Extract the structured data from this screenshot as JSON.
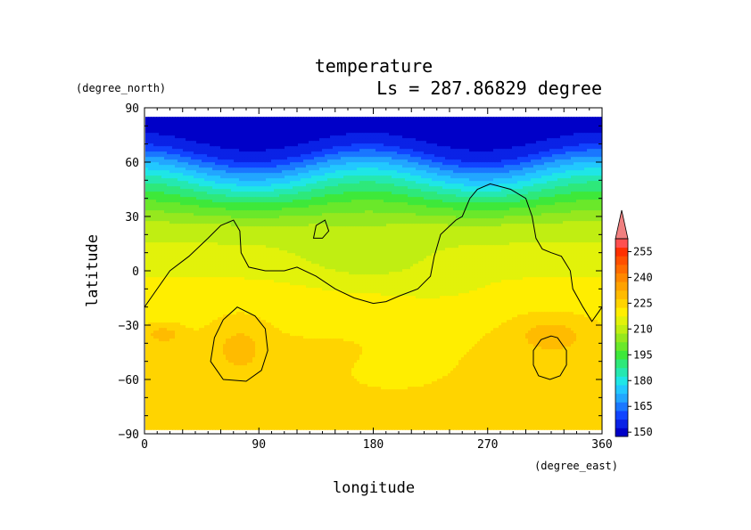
{
  "chart_data": {
    "type": "heatmap",
    "title": "temperature",
    "subtitle": "Ls = 287.86829 degree",
    "xlabel": "longitude",
    "ylabel": "latitude",
    "x_units": "(degree_east)",
    "y_units": "(degree_north)",
    "xlim": [
      0,
      360
    ],
    "ylim": [
      -90,
      90
    ],
    "x_ticks": [
      0,
      90,
      180,
      270,
      360
    ],
    "y_ticks": [
      -90,
      -60,
      -30,
      0,
      30,
      60,
      90
    ],
    "x_tick_labels": [
      "0",
      "90",
      "180",
      "270",
      "360"
    ],
    "y_tick_labels": [
      "−90",
      "−60",
      "−30",
      "0",
      "30",
      "60",
      "90"
    ],
    "data_lat_range": [
      -87,
      85
    ],
    "grid": false,
    "colorbar": {
      "placement": "right",
      "levels": [
        145,
        150,
        155,
        160,
        165,
        170,
        175,
        180,
        185,
        190,
        195,
        200,
        205,
        210,
        215,
        220,
        225,
        230,
        235,
        240,
        245,
        250,
        255,
        260
      ],
      "colors": [
        "#0000c8",
        "#0a22e6",
        "#1144ff",
        "#1a77ff",
        "#22a6ff",
        "#22c8ff",
        "#1fe6e6",
        "#25e8b0",
        "#2ee87a",
        "#3ee83a",
        "#6ae82a",
        "#96e81e",
        "#c0ee12",
        "#e2f20a",
        "#ffee00",
        "#ffd400",
        "#ffbb00",
        "#ffa200",
        "#ff8800",
        "#ff6c00",
        "#ff5000",
        "#ff3000",
        "#ff5050"
      ],
      "extend_color": "#f08080",
      "tick_labels": [
        "150",
        "165",
        "180",
        "195",
        "210",
        "225",
        "240",
        "255"
      ]
    },
    "field": {
      "zonal_profile": [
        {
          "lat": -87,
          "t": 224
        },
        {
          "lat": -70,
          "t": 224
        },
        {
          "lat": -50,
          "t": 222
        },
        {
          "lat": -30,
          "t": 219
        },
        {
          "lat": -15,
          "t": 218
        },
        {
          "lat": 0,
          "t": 214
        },
        {
          "lat": 15,
          "t": 210
        },
        {
          "lat": 25,
          "t": 206
        },
        {
          "lat": 35,
          "t": 196
        },
        {
          "lat": 45,
          "t": 184
        },
        {
          "lat": 55,
          "t": 170
        },
        {
          "lat": 65,
          "t": 155
        },
        {
          "lat": 75,
          "t": 147
        },
        {
          "lat": 85,
          "t": 146
        }
      ],
      "anomalies": [
        {
          "lon": 75,
          "lat": -40,
          "dlon": 22,
          "dlat": 14,
          "dt": 6
        },
        {
          "lon": 15,
          "lat": -35,
          "dlon": 14,
          "dlat": 5,
          "dt": 8
        },
        {
          "lon": 320,
          "lat": -35,
          "dlon": 30,
          "dlat": 10,
          "dt": 8
        },
        {
          "lon": 170,
          "lat": 5,
          "dlon": 50,
          "dlat": 18,
          "dt": -5
        },
        {
          "lon": 230,
          "lat": -10,
          "dlon": 40,
          "dlat": 12,
          "dt": -3
        },
        {
          "lon": 195,
          "lat": -60,
          "dlon": 50,
          "dlat": 12,
          "dt": -4
        },
        {
          "lon": 220,
          "lat": -48,
          "dlon": 45,
          "dlat": 12,
          "dt": -2
        }
      ],
      "polar_wave": {
        "amplitude_deg": 5,
        "wavenumber": 2,
        "phase_lon": 130
      }
    },
    "topography_contours": [
      {
        "points": [
          [
            0,
            -20
          ],
          [
            8,
            -12
          ],
          [
            20,
            0
          ],
          [
            35,
            8
          ],
          [
            50,
            18
          ],
          [
            60,
            25
          ],
          [
            70,
            28
          ],
          [
            75,
            22
          ],
          [
            76,
            10
          ],
          [
            82,
            2
          ],
          [
            95,
            0
          ],
          [
            110,
            0
          ],
          [
            120,
            2
          ],
          [
            135,
            -3
          ],
          [
            150,
            -10
          ],
          [
            165,
            -15
          ],
          [
            180,
            -18
          ],
          [
            190,
            -17
          ],
          [
            200,
            -14
          ],
          [
            215,
            -10
          ],
          [
            225,
            -3
          ],
          [
            228,
            8
          ],
          [
            233,
            20
          ],
          [
            245,
            28
          ],
          [
            250,
            30
          ],
          [
            256,
            40
          ],
          [
            262,
            45
          ],
          [
            272,
            48
          ],
          [
            288,
            45
          ],
          [
            300,
            40
          ],
          [
            305,
            30
          ],
          [
            308,
            18
          ],
          [
            313,
            12
          ],
          [
            320,
            10
          ],
          [
            328,
            8
          ],
          [
            335,
            0
          ],
          [
            337,
            -10
          ],
          [
            345,
            -20
          ],
          [
            352,
            -28
          ],
          [
            360,
            -20
          ]
        ]
      },
      {
        "points": [
          [
            73,
            -20
          ],
          [
            87,
            -25
          ],
          [
            95,
            -32
          ],
          [
            97,
            -44
          ],
          [
            92,
            -55
          ],
          [
            80,
            -61
          ],
          [
            62,
            -60
          ],
          [
            52,
            -50
          ],
          [
            55,
            -37
          ],
          [
            62,
            -27
          ]
        ]
      },
      {
        "points": [
          [
            135,
            25
          ],
          [
            142,
            28
          ],
          [
            145,
            22
          ],
          [
            140,
            18
          ],
          [
            133,
            18
          ]
        ]
      },
      {
        "points": [
          [
            320,
            -36
          ],
          [
            325,
            -37
          ],
          [
            332,
            -44
          ],
          [
            332,
            -52
          ],
          [
            327,
            -58
          ],
          [
            319,
            -60
          ],
          [
            310,
            -58
          ],
          [
            306,
            -52
          ],
          [
            306,
            -44
          ],
          [
            312,
            -38
          ]
        ]
      }
    ]
  }
}
